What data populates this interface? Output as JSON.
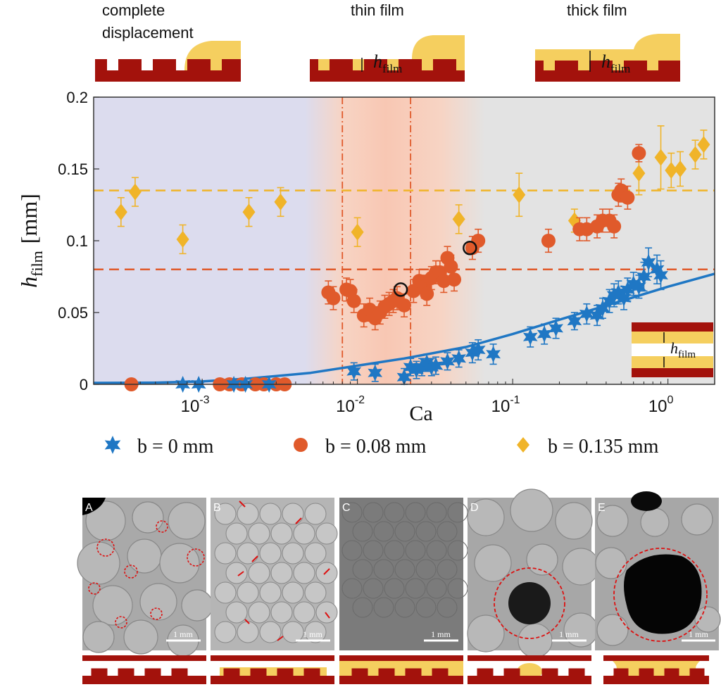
{
  "top_schematics": [
    {
      "title_line1": "complete",
      "title_line2": "displacement",
      "label": ""
    },
    {
      "title_line1": "thin film",
      "title_line2": "",
      "label_main": "h",
      "label_sub": "film"
    },
    {
      "title_line1": "thick film",
      "title_line2": "",
      "label_main": "h",
      "label_sub": "film"
    }
  ],
  "inset": {
    "label_main": "h",
    "label_sub": "film"
  },
  "axes": {
    "xlabel": "Ca",
    "ylabel_main": "h",
    "ylabel_sub": "film",
    "ylabel_unit": "[mm]",
    "yticks": [
      "0",
      "0.05",
      "0.1",
      "0.15",
      "0.2"
    ],
    "xticks": [
      {
        "base": "10",
        "exp": "-3"
      },
      {
        "base": "10",
        "exp": "-2"
      },
      {
        "base": "10",
        "exp": "-1"
      },
      {
        "base": "10",
        "exp": "0"
      }
    ]
  },
  "legend": [
    {
      "symbol": "star",
      "text": "b = 0 mm",
      "color": "#1f77c4"
    },
    {
      "symbol": "circle",
      "text": "b = 0.08 mm",
      "color": "#e05a2b"
    },
    {
      "symbol": "diamond",
      "text": "b = 0.135 mm",
      "color": "#f0b429"
    }
  ],
  "colors": {
    "blue": "#1f77c4",
    "orange": "#e05a2b",
    "yellow": "#f0b429",
    "dark_red": "#a3120c",
    "region_complete": "#dcdcee",
    "region_thin": "#f7d4c4",
    "region_thick": "#e3e3e3"
  },
  "panels": [
    {
      "letter": "A",
      "scale": "1 mm"
    },
    {
      "letter": "B",
      "scale": "1 mm"
    },
    {
      "letter": "C",
      "scale": "1 mm"
    },
    {
      "letter": "D",
      "scale": "1 mm"
    },
    {
      "letter": "E",
      "scale": "1 mm"
    }
  ],
  "chart_data": {
    "type": "scatter",
    "xlabel": "Ca",
    "ylabel": "h_film [mm]",
    "xscale": "log",
    "xlim": [
      0.0002,
      2.0
    ],
    "ylim": [
      0,
      0.2
    ],
    "grid": false,
    "legend_position": "bottom",
    "regions": [
      {
        "name": "complete displacement",
        "x_range": [
          0.0002,
          0.005
        ]
      },
      {
        "name": "thin film",
        "x_range": [
          0.005,
          0.05
        ]
      },
      {
        "name": "thick film",
        "x_range": [
          0.05,
          2.0
        ]
      }
    ],
    "hlines": [
      {
        "y": 0.135,
        "color": "#f0b429",
        "style": "dashed"
      },
      {
        "y": 0.08,
        "color": "#e05a2b",
        "style": "dashed"
      }
    ],
    "vlines": [
      {
        "x": 0.008,
        "color": "#e05a2b",
        "style": "dashdot"
      },
      {
        "x": 0.022,
        "color": "#e05a2b",
        "style": "dashdot"
      }
    ],
    "fit_curve": {
      "color": "#1f77c4",
      "x": [
        0.0002,
        0.0005,
        0.001,
        0.002,
        0.005,
        0.01,
        0.02,
        0.05,
        0.1,
        0.2,
        0.5,
        1.0,
        2.0
      ],
      "y": [
        0.001,
        0.0012,
        0.002,
        0.004,
        0.008,
        0.013,
        0.018,
        0.026,
        0.035,
        0.045,
        0.058,
        0.068,
        0.077
      ]
    },
    "highlighted_points": [
      {
        "x": 0.019,
        "y": 0.066
      },
      {
        "x": 0.053,
        "y": 0.095
      }
    ],
    "series": [
      {
        "name": "b = 0 mm",
        "marker": "star",
        "color": "#1f77c4",
        "x": [
          0.00075,
          0.00095,
          0.0016,
          0.0019,
          0.0027,
          0.0095,
          0.013,
          0.02,
          0.022,
          0.024,
          0.026,
          0.028,
          0.03,
          0.032,
          0.038,
          0.045,
          0.055,
          0.06,
          0.075,
          0.13,
          0.16,
          0.19,
          0.25,
          0.3,
          0.35,
          0.38,
          0.42,
          0.45,
          0.48,
          0.52,
          0.55,
          0.6,
          0.65,
          0.7,
          0.75,
          0.85,
          0.9
        ],
        "y": [
          0.0,
          0.0,
          0.0,
          0.0,
          0.0,
          0.009,
          0.008,
          0.005,
          0.012,
          0.01,
          0.012,
          0.015,
          0.012,
          0.013,
          0.016,
          0.018,
          0.022,
          0.024,
          0.021,
          0.033,
          0.035,
          0.039,
          0.044,
          0.049,
          0.048,
          0.053,
          0.058,
          0.062,
          0.064,
          0.06,
          0.066,
          0.07,
          0.068,
          0.075,
          0.085,
          0.08,
          0.076
        ],
        "err": [
          0.002,
          0.002,
          0.002,
          0.002,
          0.002,
          0.006,
          0.006,
          0.006,
          0.006,
          0.006,
          0.006,
          0.006,
          0.006,
          0.006,
          0.006,
          0.006,
          0.007,
          0.007,
          0.007,
          0.007,
          0.007,
          0.007,
          0.006,
          0.007,
          0.007,
          0.007,
          0.008,
          0.008,
          0.008,
          0.008,
          0.008,
          0.008,
          0.008,
          0.01,
          0.01,
          0.01,
          0.01
        ]
      },
      {
        "name": "b = 0.08 mm",
        "marker": "circle",
        "color": "#e05a2b",
        "x": [
          0.00035,
          0.0013,
          0.0015,
          0.0018,
          0.0022,
          0.0025,
          0.003,
          0.0034,
          0.0065,
          0.007,
          0.0085,
          0.009,
          0.0095,
          0.011,
          0.012,
          0.013,
          0.014,
          0.015,
          0.016,
          0.017,
          0.018,
          0.02,
          0.023,
          0.025,
          0.027,
          0.028,
          0.03,
          0.032,
          0.034,
          0.036,
          0.038,
          0.04,
          0.042,
          0.055,
          0.06,
          0.17,
          0.27,
          0.3,
          0.35,
          0.38,
          0.42,
          0.45,
          0.48,
          0.5,
          0.55,
          0.65
        ],
        "y": [
          0.0,
          0.0,
          0.0,
          0.0,
          0.0,
          0.0,
          0.0,
          0.0,
          0.064,
          0.06,
          0.066,
          0.065,
          0.058,
          0.048,
          0.052,
          0.046,
          0.05,
          0.054,
          0.056,
          0.058,
          0.06,
          0.055,
          0.065,
          0.072,
          0.068,
          0.063,
          0.074,
          0.078,
          0.078,
          0.072,
          0.088,
          0.082,
          0.073,
          0.095,
          0.1,
          0.1,
          0.108,
          0.108,
          0.11,
          0.114,
          0.114,
          0.11,
          0.132,
          0.135,
          0.13,
          0.161
        ],
        "err": [
          0.002,
          0.002,
          0.002,
          0.002,
          0.002,
          0.002,
          0.002,
          0.002,
          0.008,
          0.008,
          0.008,
          0.008,
          0.008,
          0.008,
          0.008,
          0.008,
          0.008,
          0.008,
          0.008,
          0.008,
          0.008,
          0.008,
          0.008,
          0.008,
          0.008,
          0.008,
          0.008,
          0.008,
          0.008,
          0.008,
          0.008,
          0.008,
          0.008,
          0.008,
          0.008,
          0.008,
          0.008,
          0.008,
          0.008,
          0.008,
          0.008,
          0.008,
          0.008,
          0.008,
          0.008,
          0.006
        ]
      },
      {
        "name": "b = 0.135 mm",
        "marker": "diamond",
        "color": "#f0b429",
        "x": [
          0.0003,
          0.00037,
          0.00075,
          0.002,
          0.0032,
          0.01,
          0.045,
          0.11,
          0.25,
          0.65,
          0.9,
          1.05,
          1.2,
          1.5,
          1.7
        ],
        "y": [
          0.12,
          0.134,
          0.101,
          0.12,
          0.127,
          0.106,
          0.115,
          0.132,
          0.114,
          0.147,
          0.158,
          0.149,
          0.15,
          0.16,
          0.167
        ],
        "err": [
          0.01,
          0.01,
          0.01,
          0.01,
          0.01,
          0.01,
          0.01,
          0.015,
          0.008,
          0.015,
          0.022,
          0.012,
          0.012,
          0.01,
          0.01
        ]
      }
    ]
  }
}
